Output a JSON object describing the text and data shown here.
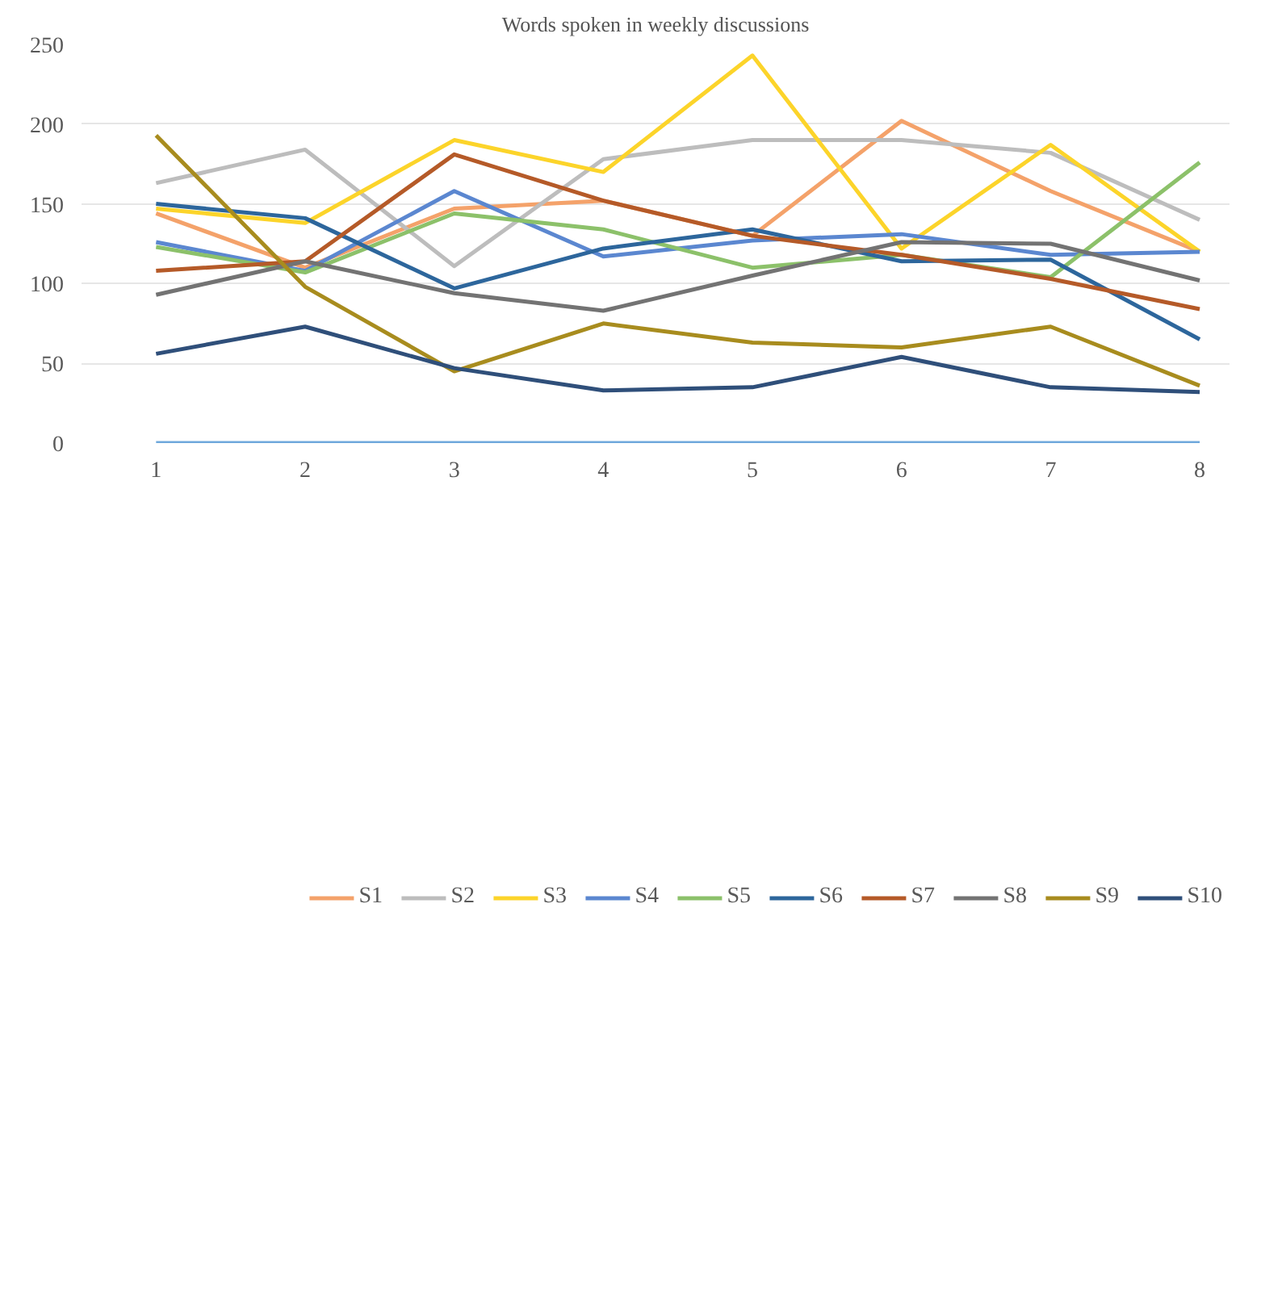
{
  "chart_data": {
    "type": "line",
    "title": "Words spoken in weekly discussions",
    "categories": [
      "1",
      "2",
      "3",
      "4",
      "5",
      "6",
      "7",
      "8"
    ],
    "ylim": [
      0,
      250
    ],
    "yticks": [
      0,
      50,
      100,
      150,
      200,
      250
    ],
    "grid": "y",
    "legend": "bottom",
    "marker": "none",
    "line_style": "solid",
    "series": [
      {
        "name": "S1",
        "color": "#f4a26a",
        "values": [
          144,
          110,
          147,
          152,
          130,
          202,
          158,
          120
        ]
      },
      {
        "name": "S2",
        "color": "#bdbdbd",
        "values": [
          163,
          184,
          111,
          178,
          190,
          190,
          182,
          140
        ]
      },
      {
        "name": "S3",
        "color": "#fcd42a",
        "values": [
          147,
          138,
          190,
          170,
          243,
          122,
          187,
          120
        ]
      },
      {
        "name": "S4",
        "color": "#5b87d0",
        "values": [
          126,
          108,
          158,
          117,
          127,
          131,
          118,
          120
        ]
      },
      {
        "name": "S5",
        "color": "#8cc16a",
        "values": [
          123,
          107,
          144,
          134,
          110,
          118,
          104,
          176
        ]
      },
      {
        "name": "S6",
        "color": "#2d669c",
        "values": [
          150,
          141,
          97,
          122,
          134,
          114,
          115,
          65
        ]
      },
      {
        "name": "S7",
        "color": "#b55a28",
        "values": [
          108,
          114,
          181,
          152,
          130,
          118,
          103,
          84
        ]
      },
      {
        "name": "S8",
        "color": "#737373",
        "values": [
          93,
          114,
          94,
          83,
          105,
          126,
          125,
          102
        ]
      },
      {
        "name": "S9",
        "color": "#a88c1e",
        "values": [
          193,
          98,
          45,
          75,
          63,
          60,
          73,
          36
        ]
      },
      {
        "name": "S10",
        "color": "#2f4f7a",
        "values": [
          56,
          73,
          47,
          33,
          35,
          54,
          35,
          32
        ]
      },
      {
        "color": "#6fa8dc",
        "values": [
          0,
          0,
          0,
          0,
          0,
          0,
          0,
          0
        ]
      }
    ]
  }
}
